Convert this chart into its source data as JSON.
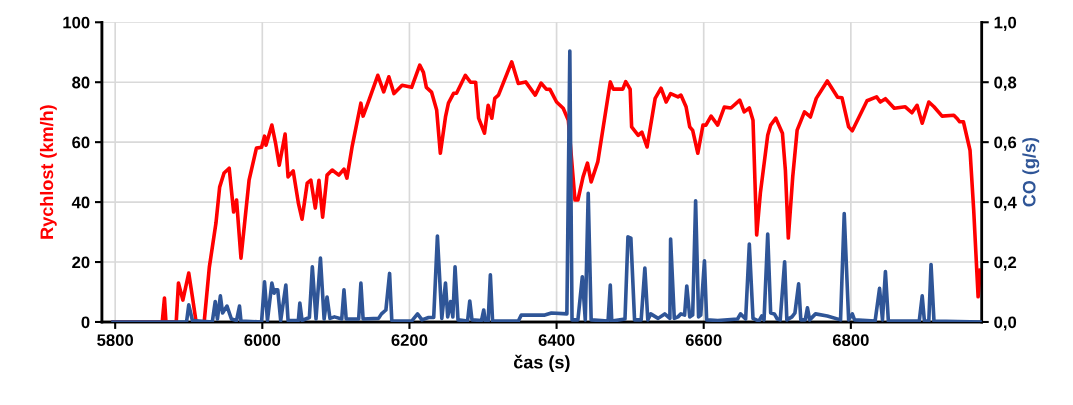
{
  "chart_data": {
    "type": "line",
    "xlabel": "čas (s)",
    "ylabel": "Rychlost (km/h)",
    "y2label": "CO (g/s)",
    "xlim": [
      5782,
      6978
    ],
    "xticks": [
      5800,
      6000,
      6200,
      6400,
      6600,
      6800
    ],
    "ylim": [
      0,
      100
    ],
    "yticks": [
      0,
      20,
      40,
      60,
      80,
      100
    ],
    "y2lim": [
      0,
      1.0
    ],
    "y2ticks": [
      {
        "value": 0,
        "label": "0,0"
      },
      {
        "value": 0.2,
        "label": "0,2"
      },
      {
        "value": 0.4,
        "label": "0,4"
      },
      {
        "value": 0.6,
        "label": "0,6"
      },
      {
        "value": 0.8,
        "label": "0,8"
      },
      {
        "value": 1.0,
        "label": "1,0"
      }
    ],
    "grid": true,
    "legend": false,
    "marker": "none",
    "line_style": "solid",
    "series": [
      {
        "color": "#ff0000",
        "x": [
          5797,
          5864,
          5867,
          5869,
          5883,
          5886,
          5892,
          5900,
          5905,
          5910,
          5921,
          5928,
          5937,
          5942,
          5948,
          5955,
          5961,
          5965,
          5971,
          5982,
          5992,
          5999,
          6003,
          6005,
          6013,
          6018,
          6023,
          6031,
          6035,
          6042,
          6049,
          6054,
          6061,
          6066,
          6072,
          6077,
          6082,
          6088,
          6095,
          6104,
          6111,
          6115,
          6122,
          6134,
          6137,
          6145,
          6157,
          6165,
          6172,
          6179,
          6190,
          6203,
          6214,
          6219,
          6223,
          6230,
          6237,
          6242,
          6249,
          6253,
          6260,
          6264,
          6276,
          6283,
          6290,
          6294,
          6302,
          6307,
          6312,
          6316,
          6321,
          6339,
          6348,
          6358,
          6371,
          6379,
          6386,
          6391,
          6400,
          6409,
          6416,
          6425,
          6429,
          6436,
          6442,
          6447,
          6456,
          6473,
          6477,
          6490,
          6494,
          6500,
          6502,
          6511,
          6516,
          6523,
          6534,
          6542,
          6549,
          6555,
          6565,
          6569,
          6576,
          6581,
          6585,
          6592,
          6599,
          6603,
          6610,
          6619,
          6628,
          6637,
          6649,
          6655,
          6662,
          6667,
          6672,
          6677,
          6687,
          6691,
          6698,
          6707,
          6711,
          6715,
          6721,
          6727,
          6737,
          6745,
          6753,
          6768,
          6782,
          6788,
          6797,
          6802,
          6809,
          6822,
          6835,
          6840,
          6847,
          6859,
          6874,
          6883,
          6890,
          6897,
          6906,
          6913,
          6924,
          6940,
          6944,
          6948,
          6953,
          6962,
          6967,
          6973,
          6976
        ],
        "values": [
          0,
          0,
          8,
          0,
          0,
          13,
          7.3,
          16.3,
          8.3,
          0,
          0,
          18.3,
          33,
          45,
          49.7,
          51.3,
          36.7,
          40.7,
          21.3,
          47.3,
          58,
          58.3,
          62,
          59,
          65.7,
          59.7,
          52.3,
          62.7,
          48.4,
          50.4,
          39.7,
          34.3,
          46.3,
          47.3,
          38,
          47.3,
          35,
          49,
          50.7,
          49,
          51,
          48,
          58.4,
          73,
          68.7,
          74,
          82.3,
          76.8,
          81.8,
          76.2,
          79,
          78.3,
          85.7,
          83.3,
          78.3,
          76.7,
          70.7,
          56.3,
          68.4,
          73,
          76.3,
          76.3,
          82.3,
          80,
          80,
          68,
          63,
          72.3,
          68,
          74.6,
          75.7,
          86.8,
          79.6,
          80.1,
          75.7,
          79.7,
          77.7,
          77.6,
          73.4,
          71.3,
          67.3,
          40.7,
          40.7,
          48.4,
          53,
          46.7,
          53.4,
          80.1,
          77.7,
          77.7,
          80.2,
          77.7,
          65.1,
          62.3,
          63.3,
          58.4,
          74.6,
          78,
          73.4,
          76.2,
          75.1,
          75.7,
          71.8,
          65.1,
          63.9,
          56.3,
          65.7,
          65.7,
          68.7,
          65.7,
          71.7,
          71.4,
          74,
          70.1,
          71.4,
          67.3,
          29,
          43,
          62.3,
          65.7,
          68,
          63,
          50.7,
          28,
          48.4,
          64,
          70.1,
          68.4,
          74.6,
          80.4,
          75,
          74.8,
          65.1,
          63.8,
          67.3,
          73.8,
          75.1,
          73.4,
          74.5,
          71.3,
          71.8,
          69.8,
          72.3,
          66.3,
          73.4,
          71.8,
          68.7,
          69,
          68,
          66.8,
          66.8,
          57.3,
          37.3,
          8.4,
          17.3
        ]
      },
      {
        "color": "#2f5597",
        "axis": "y2",
        "x": [
          5797,
          5897,
          5900,
          5905,
          5932,
          5936,
          5939,
          5943,
          5946,
          5952,
          5958,
          5965,
          5969,
          5971,
          5999,
          6003,
          6007,
          6013,
          6016,
          6018,
          6021,
          6025,
          6032,
          6035,
          6049,
          6051,
          6054,
          6064,
          6068,
          6073,
          6079,
          6084,
          6088,
          6092,
          6098,
          6108,
          6111,
          6114,
          6131,
          6134,
          6137,
          6158,
          6162,
          6168,
          6173,
          6176,
          6179,
          6203,
          6211,
          6217,
          6226,
          6233,
          6238,
          6244,
          6249,
          6252,
          6256,
          6259,
          6262,
          6266,
          6279,
          6282,
          6285,
          6298,
          6301,
          6303,
          6307,
          6310,
          6313,
          6348,
          6352,
          6384,
          6393,
          6414,
          6418,
          6421,
          6429,
          6435,
          6439,
          6443,
          6447,
          6470,
          6473,
          6475,
          6493,
          6497,
          6501,
          6506,
          6515,
          6520,
          6524,
          6528,
          6538,
          6547,
          6554,
          6555,
          6560,
          6565,
          6569,
          6574,
          6577,
          6581,
          6585,
          6589,
          6593,
          6596,
          6601,
          6604,
          6619,
          6646,
          6650,
          6657,
          6662,
          6667,
          6675,
          6679,
          6682,
          6687,
          6691,
          6696,
          6700,
          6704,
          6710,
          6713,
          6720,
          6724,
          6729,
          6732,
          6738,
          6741,
          6744,
          6752,
          6768,
          6786,
          6791,
          6797,
          6802,
          6805,
          6833,
          6839,
          6843,
          6847,
          6851,
          6893,
          6897,
          6900,
          6906,
          6909,
          6913,
          6976
        ],
        "values": [
          0,
          0,
          0.057,
          0.005,
          0,
          0.068,
          0.01,
          0.087,
          0.03,
          0.053,
          0.01,
          0.005,
          0.053,
          0.003,
          0,
          0.134,
          0.005,
          0.13,
          0.096,
          0.107,
          0.107,
          0.005,
          0.123,
          0.005,
          0.005,
          0.063,
          0.005,
          0.015,
          0.184,
          0.01,
          0.213,
          0.01,
          0.083,
          0.012,
          0.017,
          0.01,
          0.107,
          0.01,
          0.01,
          0.13,
          0.01,
          0.012,
          0.027,
          0.04,
          0.162,
          0.005,
          0.003,
          0.003,
          0.027,
          0.007,
          0.015,
          0.015,
          0.287,
          0.012,
          0.13,
          0.017,
          0.068,
          0.017,
          0.184,
          0.007,
          0.003,
          0.07,
          0.007,
          0.005,
          0.04,
          0.003,
          0.003,
          0.157,
          0.003,
          0.003,
          0.023,
          0.023,
          0.03,
          0.027,
          0.904,
          0.007,
          0.007,
          0.151,
          0.007,
          0.429,
          0.007,
          0.003,
          0.123,
          0.003,
          0.01,
          0.284,
          0.28,
          0.007,
          0.007,
          0.18,
          0.007,
          0.027,
          0.012,
          0.027,
          0.012,
          0.277,
          0.012,
          0.017,
          0.027,
          0.023,
          0.12,
          0.017,
          0.023,
          0.404,
          0.017,
          0.023,
          0.204,
          0.007,
          0.005,
          0.01,
          0.027,
          0.01,
          0.26,
          0.012,
          0.003,
          0.02,
          0.007,
          0.293,
          0.03,
          0.027,
          0.01,
          0.007,
          0.201,
          0.007,
          0.017,
          0.03,
          0.127,
          0.007,
          0.007,
          0.047,
          0.007,
          0.027,
          0.02,
          0.007,
          0.362,
          0.007,
          0.027,
          0.007,
          0.003,
          0.112,
          0.007,
          0.168,
          0.003,
          0.003,
          0.087,
          0.003,
          0.003,
          0.192,
          0.003,
          0
        ]
      }
    ]
  }
}
